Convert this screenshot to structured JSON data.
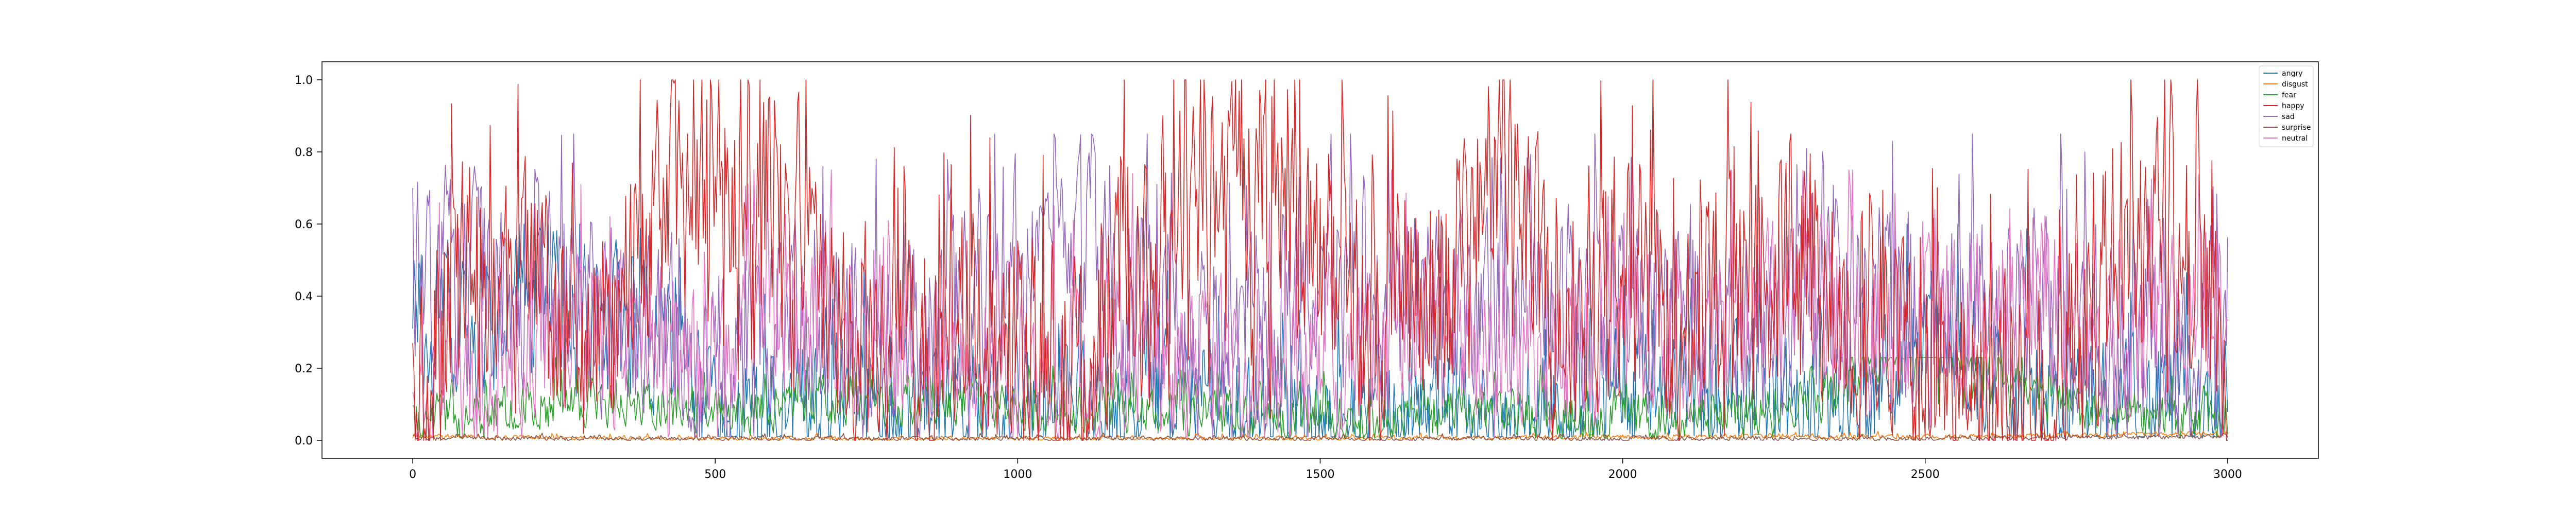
{
  "chart_data": {
    "type": "line",
    "title": "",
    "xlabel": "",
    "ylabel": "",
    "xlim": [
      -150,
      3150
    ],
    "ylim": [
      -0.05,
      1.05
    ],
    "n_points": 3000,
    "x_ticks": [
      0,
      500,
      1000,
      1500,
      2000,
      2500,
      3000
    ],
    "y_ticks": [
      0.0,
      0.2,
      0.4,
      0.6,
      0.8,
      1.0
    ],
    "x_tick_labels": [
      "0",
      "500",
      "1000",
      "1500",
      "2000",
      "2500",
      "3000"
    ],
    "y_tick_labels": [
      "0.0",
      "0.2",
      "0.4",
      "0.6",
      "0.8",
      "1.0"
    ],
    "legend_position": "top-right",
    "grid": false,
    "series": [
      {
        "name": "angry",
        "color": "#1f77b4",
        "base": 0.05,
        "spread": 0.55,
        "burst": 0.18,
        "x": [
          0,
          100,
          200,
          300,
          400,
          500,
          600,
          700,
          800,
          900,
          1000,
          1100,
          1200,
          1300,
          1400,
          1500,
          1600,
          1700,
          1800,
          1900,
          2000,
          2100,
          2200,
          2300,
          2400,
          2500,
          2600,
          2700,
          2800,
          2900,
          3000
        ],
        "values": [
          0.38,
          0.32,
          0.42,
          0.35,
          0.3,
          0.05,
          0.06,
          0.12,
          0.08,
          0.1,
          0.07,
          0.05,
          0.08,
          0.1,
          0.06,
          0.05,
          0.08,
          0.1,
          0.06,
          0.08,
          0.12,
          0.15,
          0.1,
          0.08,
          0.12,
          0.35,
          0.2,
          0.08,
          0.06,
          0.1,
          0.15
        ]
      },
      {
        "name": "disgust",
        "color": "#ff7f0e",
        "base": 0.005,
        "spread": 0.02,
        "burst": 0.02,
        "x": [
          0,
          500,
          1000,
          1500,
          2000,
          2500,
          3000
        ],
        "values": [
          0.01,
          0.005,
          0.005,
          0.005,
          0.01,
          0.01,
          0.02
        ]
      },
      {
        "name": "fear",
        "color": "#2ca02c",
        "base": 0.03,
        "spread": 0.2,
        "burst": 0.12,
        "x": [
          0,
          250,
          500,
          750,
          1000,
          1250,
          1500,
          1750,
          2000,
          2250,
          2500,
          2750,
          3000
        ],
        "values": [
          0.05,
          0.1,
          0.08,
          0.12,
          0.1,
          0.08,
          0.06,
          0.08,
          0.06,
          0.08,
          0.3,
          0.08,
          0.05
        ]
      },
      {
        "name": "happy",
        "color": "#d62728",
        "base": 0.0,
        "spread": 1.0,
        "burst": 0.45,
        "x": [
          0,
          100,
          200,
          300,
          400,
          500,
          600,
          700,
          800,
          900,
          1000,
          1100,
          1200,
          1300,
          1400,
          1500,
          1600,
          1700,
          1800,
          1900,
          2000,
          2100,
          2200,
          2300,
          2400,
          2500,
          2600,
          2700,
          2800,
          2900,
          3000
        ],
        "values": [
          0.1,
          0.5,
          0.4,
          0.2,
          0.6,
          0.75,
          0.7,
          0.3,
          0.2,
          0.35,
          0.25,
          0.15,
          0.45,
          0.7,
          0.8,
          0.5,
          0.3,
          0.5,
          0.75,
          0.3,
          0.6,
          0.2,
          0.4,
          0.55,
          0.3,
          0.2,
          0.15,
          0.1,
          0.5,
          0.7,
          0.2
        ]
      },
      {
        "name": "sad",
        "color": "#9467bd",
        "base": 0.05,
        "spread": 0.8,
        "burst": 0.3,
        "x": [
          0,
          100,
          200,
          300,
          400,
          500,
          600,
          700,
          800,
          900,
          1000,
          1100,
          1200,
          1300,
          1400,
          1500,
          1600,
          1700,
          1800,
          1900,
          2000,
          2100,
          2200,
          2300,
          2400,
          2500,
          2600,
          2700,
          2800,
          2900,
          3000
        ],
        "values": [
          0.5,
          0.45,
          0.4,
          0.35,
          0.3,
          0.2,
          0.4,
          0.3,
          0.35,
          0.4,
          0.5,
          0.55,
          0.4,
          0.3,
          0.35,
          0.45,
          0.5,
          0.4,
          0.3,
          0.35,
          0.4,
          0.3,
          0.35,
          0.4,
          0.45,
          0.35,
          0.4,
          0.45,
          0.3,
          0.2,
          0.25
        ]
      },
      {
        "name": "surprise",
        "color": "#8c564b",
        "base": 0.0,
        "spread": 0.02,
        "burst": 0.02,
        "x": [
          0,
          500,
          1000,
          1500,
          2000,
          2500,
          3000
        ],
        "values": [
          0.005,
          0.005,
          0.005,
          0.005,
          0.005,
          0.005,
          0.01
        ]
      },
      {
        "name": "neutral",
        "color": "#e377c2",
        "base": 0.05,
        "spread": 0.7,
        "burst": 0.3,
        "x": [
          0,
          100,
          200,
          300,
          400,
          500,
          600,
          700,
          800,
          900,
          1000,
          1100,
          1200,
          1300,
          1400,
          1500,
          1600,
          1700,
          1800,
          1900,
          2000,
          2100,
          2200,
          2300,
          2400,
          2500,
          2600,
          2700,
          2800,
          2900,
          3000
        ],
        "values": [
          0.15,
          0.2,
          0.25,
          0.3,
          0.25,
          0.2,
          0.35,
          0.3,
          0.25,
          0.2,
          0.15,
          0.2,
          0.25,
          0.2,
          0.15,
          0.2,
          0.25,
          0.3,
          0.2,
          0.25,
          0.35,
          0.3,
          0.35,
          0.4,
          0.35,
          0.3,
          0.35,
          0.4,
          0.3,
          0.35,
          0.45
        ]
      }
    ]
  }
}
